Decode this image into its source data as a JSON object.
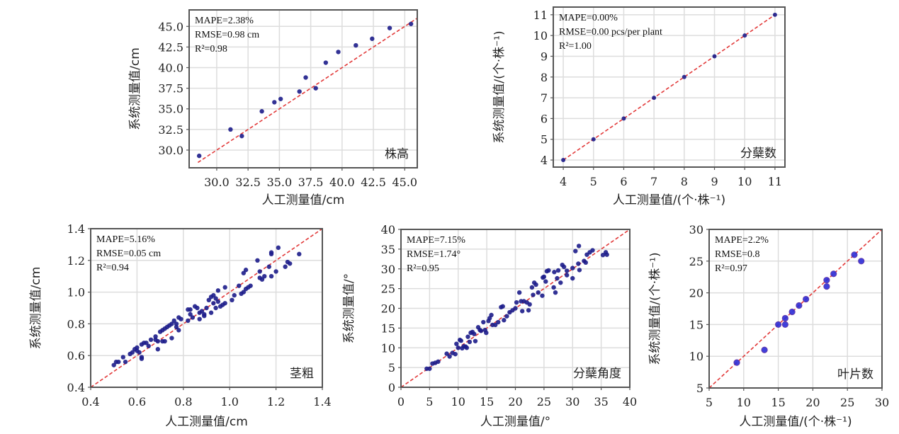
{
  "chart_data": [
    {
      "type": "scatter",
      "title": "株高",
      "xlabel": "人工测量值/cm",
      "ylabel": "系统测量值/cm",
      "xlim": [
        27.8,
        46.0
      ],
      "ylim": [
        27.85,
        47.0
      ],
      "xticks": [
        "30.0",
        "32.5",
        "35.0",
        "37.5",
        "40.0",
        "42.5",
        "45.0"
      ],
      "xtick_values": [
        30,
        32.5,
        35,
        37.5,
        40,
        42.5,
        45
      ],
      "yticks": [
        "30.0",
        "32.5",
        "35.0",
        "37.5",
        "40.0",
        "42.5",
        "45.0"
      ],
      "ytick_values": [
        30,
        32.5,
        35,
        37.5,
        40,
        42.5,
        45
      ],
      "grid": true,
      "stats": [
        "MAPE=2.38%",
        "RMSE=0.98 cm",
        "R²=0.98"
      ],
      "fit_line": [
        [
          28.5,
          28.5
        ],
        [
          46.2,
          46.2
        ]
      ],
      "points": [
        [
          28.6,
          29.3
        ],
        [
          31.1,
          32.5
        ],
        [
          32.0,
          31.7
        ],
        [
          33.6,
          34.7
        ],
        [
          34.6,
          35.8
        ],
        [
          35.1,
          36.2
        ],
        [
          36.6,
          37.1
        ],
        [
          37.1,
          38.8
        ],
        [
          37.9,
          37.5
        ],
        [
          38.7,
          40.6
        ],
        [
          39.7,
          41.9
        ],
        [
          41.1,
          42.7
        ],
        [
          42.4,
          43.5
        ],
        [
          43.8,
          44.8
        ],
        [
          45.5,
          45.3
        ]
      ]
    },
    {
      "type": "scatter",
      "title": "分蘖数",
      "xlabel": "人工测量值/(个·株⁻¹)",
      "ylabel": "系统测量值/(个·株⁻¹)",
      "xlim": [
        3.67,
        11.33
      ],
      "ylim": [
        3.66,
        11.37
      ],
      "xticks": [
        "4",
        "5",
        "6",
        "7",
        "8",
        "9",
        "10",
        "11"
      ],
      "xtick_values": [
        4,
        5,
        6,
        7,
        8,
        9,
        10,
        11
      ],
      "yticks": [
        "4",
        "5",
        "6",
        "7",
        "8",
        "9",
        "10",
        "11"
      ],
      "ytick_values": [
        4,
        5,
        6,
        7,
        8,
        9,
        10,
        11
      ],
      "grid": true,
      "stats": [
        "MAPE=0.00%",
        "RMSE=0.00 pcs/per plant",
        "R²=1.00"
      ],
      "fit_line": [
        [
          4,
          4
        ],
        [
          11,
          11
        ]
      ],
      "points": [
        [
          4,
          4
        ],
        [
          5,
          5
        ],
        [
          6,
          6
        ],
        [
          7,
          7
        ],
        [
          8,
          8
        ],
        [
          9,
          9
        ],
        [
          10,
          10
        ],
        [
          11,
          11
        ]
      ]
    },
    {
      "type": "scatter",
      "title": "茎粗",
      "xlabel": "人工测量值/cm",
      "ylabel": "系统测量值/cm",
      "xlim": [
        0.4,
        1.4
      ],
      "ylim": [
        0.4,
        1.4
      ],
      "xticks": [
        "0.4",
        "0.6",
        "0.8",
        "1.0",
        "1.2",
        "1.4"
      ],
      "xtick_values": [
        0.4,
        0.6,
        0.8,
        1.0,
        1.2,
        1.4
      ],
      "yticks": [
        "0.4",
        "0.6",
        "0.8",
        "1.0",
        "1.2",
        "1.4"
      ],
      "ytick_values": [
        0.4,
        0.6,
        0.8,
        1.0,
        1.2,
        1.4
      ],
      "grid": true,
      "stats": [
        "MAPE=5.16%",
        "RMSE=0.05 cm",
        "R²=0.94"
      ],
      "fit_line": [
        [
          0.4,
          0.4
        ],
        [
          1.4,
          1.4
        ]
      ],
      "points": [
        [
          0.5,
          0.54
        ],
        [
          0.51,
          0.56
        ],
        [
          0.52,
          0.56
        ],
        [
          0.54,
          0.59
        ],
        [
          0.55,
          0.56
        ],
        [
          0.57,
          0.61
        ],
        [
          0.58,
          0.62
        ],
        [
          0.59,
          0.64
        ],
        [
          0.6,
          0.65
        ],
        [
          0.6,
          0.63
        ],
        [
          0.61,
          0.62
        ],
        [
          0.62,
          0.58
        ],
        [
          0.62,
          0.59
        ],
        [
          0.62,
          0.67
        ],
        [
          0.63,
          0.68
        ],
        [
          0.64,
          0.68
        ],
        [
          0.65,
          0.66
        ],
        [
          0.66,
          0.7
        ],
        [
          0.68,
          0.72
        ],
        [
          0.68,
          0.7
        ],
        [
          0.69,
          0.64
        ],
        [
          0.69,
          0.69
        ],
        [
          0.7,
          0.75
        ],
        [
          0.71,
          0.76
        ],
        [
          0.71,
          0.69
        ],
        [
          0.72,
          0.77
        ],
        [
          0.72,
          0.69
        ],
        [
          0.73,
          0.78
        ],
        [
          0.74,
          0.79
        ],
        [
          0.75,
          0.8
        ],
        [
          0.75,
          0.71
        ],
        [
          0.76,
          0.82
        ],
        [
          0.77,
          0.78
        ],
        [
          0.77,
          0.8
        ],
        [
          0.78,
          0.76
        ],
        [
          0.78,
          0.84
        ],
        [
          0.79,
          0.83
        ],
        [
          0.82,
          0.89
        ],
        [
          0.82,
          0.82
        ],
        [
          0.83,
          0.89
        ],
        [
          0.83,
          0.86
        ],
        [
          0.84,
          0.84
        ],
        [
          0.85,
          0.91
        ],
        [
          0.86,
          0.9
        ],
        [
          0.87,
          0.83
        ],
        [
          0.87,
          0.87
        ],
        [
          0.88,
          0.88
        ],
        [
          0.89,
          0.86
        ],
        [
          0.89,
          0.85
        ],
        [
          0.9,
          0.9
        ],
        [
          0.91,
          0.95
        ],
        [
          0.92,
          0.97
        ],
        [
          0.92,
          0.87
        ],
        [
          0.93,
          0.98
        ],
        [
          0.93,
          0.93
        ],
        [
          0.94,
          0.96
        ],
        [
          0.94,
          0.9
        ],
        [
          0.95,
          1.01
        ],
        [
          0.95,
          0.94
        ],
        [
          0.96,
          0.91
        ],
        [
          0.97,
          0.92
        ],
        [
          0.98,
          0.93
        ],
        [
          0.98,
          1.03
        ],
        [
          1.01,
          0.95
        ],
        [
          1.02,
          0.98
        ],
        [
          1.04,
          1.04
        ],
        [
          1.05,
          0.99
        ],
        [
          1.06,
          1.0
        ],
        [
          1.06,
          1.12
        ],
        [
          1.07,
          1.14
        ],
        [
          1.07,
          1.02
        ],
        [
          1.08,
          1.03
        ],
        [
          1.09,
          1.04
        ],
        [
          1.12,
          1.2
        ],
        [
          1.13,
          1.13
        ],
        [
          1.13,
          1.09
        ],
        [
          1.14,
          1.08
        ],
        [
          1.15,
          1.1
        ],
        [
          1.17,
          1.16
        ],
        [
          1.18,
          1.25
        ],
        [
          1.18,
          1.24
        ],
        [
          1.18,
          1.1
        ],
        [
          1.2,
          1.13
        ],
        [
          1.21,
          1.28
        ],
        [
          1.24,
          1.16
        ],
        [
          1.25,
          1.19
        ],
        [
          1.26,
          1.18
        ],
        [
          1.3,
          1.24
        ]
      ]
    },
    {
      "type": "scatter",
      "title": "分蘖角度",
      "xlabel": "人工测量值/°",
      "ylabel": "系统测量值/°",
      "xlim": [
        0,
        40
      ],
      "ylim": [
        0,
        40
      ],
      "xticks": [
        "0",
        "5",
        "10",
        "15",
        "20",
        "25",
        "30",
        "35",
        "40"
      ],
      "xtick_values": [
        0,
        5,
        10,
        15,
        20,
        25,
        30,
        35,
        40
      ],
      "yticks": [
        "0",
        "5",
        "10",
        "15",
        "20",
        "25",
        "30",
        "35",
        "40"
      ],
      "ytick_values": [
        0,
        5,
        10,
        15,
        20,
        25,
        30,
        35,
        40
      ],
      "grid": true,
      "stats": [
        "MAPE=7.15%",
        "RMSE=1.74°",
        "R²=0.95"
      ],
      "fit_line": [
        [
          0,
          0
        ],
        [
          40,
          40
        ]
      ],
      "points": [
        [
          4.5,
          4.7
        ],
        [
          5,
          4.7
        ],
        [
          5.5,
          6
        ],
        [
          6,
          6.2
        ],
        [
          6.5,
          6.5
        ],
        [
          8,
          8.5
        ],
        [
          8.5,
          7.8
        ],
        [
          9,
          8.7
        ],
        [
          9.5,
          8.4
        ],
        [
          9.7,
          11
        ],
        [
          10,
          10
        ],
        [
          10.3,
          12
        ],
        [
          10.5,
          11.8
        ],
        [
          10.7,
          9.9
        ],
        [
          11,
          10.4
        ],
        [
          11.3,
          10.3
        ],
        [
          11.5,
          10
        ],
        [
          11.7,
          12.8
        ],
        [
          12,
          11.5
        ],
        [
          12.2,
          13.8
        ],
        [
          12.5,
          14
        ],
        [
          12.8,
          13.5
        ],
        [
          13,
          11.7
        ],
        [
          13.5,
          15.2
        ],
        [
          13.8,
          14.5
        ],
        [
          14,
          14.3
        ],
        [
          14.4,
          16.5
        ],
        [
          14.7,
          14.5
        ],
        [
          14.9,
          13.8
        ],
        [
          15.3,
          16.8
        ],
        [
          15.5,
          17.5
        ],
        [
          15.8,
          18.3
        ],
        [
          16,
          15.8
        ],
        [
          16.5,
          15.8
        ],
        [
          17,
          16.5
        ],
        [
          17.5,
          20.3
        ],
        [
          17.8,
          20.5
        ],
        [
          18,
          17
        ],
        [
          18.5,
          18
        ],
        [
          19,
          19
        ],
        [
          19.5,
          19.5
        ],
        [
          20,
          20
        ],
        [
          20.2,
          21.5
        ],
        [
          20.7,
          24
        ],
        [
          21,
          21.8
        ],
        [
          21.2,
          19.3
        ],
        [
          21.5,
          21.8
        ],
        [
          22,
          21.5
        ],
        [
          22.3,
          19.5
        ],
        [
          22.5,
          21
        ],
        [
          22.9,
          25.3
        ],
        [
          23.1,
          23.4
        ],
        [
          23.3,
          26.5
        ],
        [
          23.6,
          26
        ],
        [
          24,
          24
        ],
        [
          24.7,
          23.2
        ],
        [
          24.8,
          27.8
        ],
        [
          25,
          28
        ],
        [
          25.3,
          26.8
        ],
        [
          25.5,
          29.4
        ],
        [
          25.8,
          29.6
        ],
        [
          26.7,
          25.3
        ],
        [
          26.8,
          29.2
        ],
        [
          27,
          24
        ],
        [
          27.3,
          27.6
        ],
        [
          27.5,
          29.6
        ],
        [
          27.9,
          26.5
        ],
        [
          28.2,
          31
        ],
        [
          28.5,
          30.5
        ],
        [
          29,
          29.5
        ],
        [
          29,
          28.4
        ],
        [
          30,
          30.2
        ],
        [
          30,
          27.6
        ],
        [
          30.5,
          34.5
        ],
        [
          31,
          31.3
        ],
        [
          31.1,
          35.8
        ],
        [
          31.2,
          29.7
        ],
        [
          32,
          32
        ],
        [
          32.3,
          31.6
        ],
        [
          32.5,
          33.6
        ],
        [
          33,
          34.2
        ],
        [
          33.5,
          34.7
        ],
        [
          35.3,
          33.5
        ],
        [
          35.8,
          34.2
        ],
        [
          36,
          33.6
        ]
      ]
    },
    {
      "type": "scatter",
      "title": "叶片数",
      "xlabel": "人工测量值/(个·株⁻¹)",
      "ylabel": "系统测量值/(个·株⁻¹)",
      "xlim": [
        5,
        30
      ],
      "ylim": [
        5,
        30
      ],
      "xticks": [
        "5",
        "10",
        "15",
        "20",
        "25",
        "30"
      ],
      "xtick_values": [
        5,
        10,
        15,
        20,
        25,
        30
      ],
      "yticks": [
        "5",
        "10",
        "15",
        "20",
        "25",
        "30"
      ],
      "ytick_values": [
        5,
        10,
        15,
        20,
        25,
        30
      ],
      "grid": true,
      "stats": [
        "MAPE=2.2%",
        "RMSE=0.8",
        "R²=0.97"
      ],
      "fit_line": [
        [
          5,
          5
        ],
        [
          30,
          30
        ]
      ],
      "points": [
        [
          9,
          9
        ],
        [
          13,
          11
        ],
        [
          15,
          15
        ],
        [
          16,
          16
        ],
        [
          16,
          15
        ],
        [
          17,
          17
        ],
        [
          18,
          18
        ],
        [
          19,
          19
        ],
        [
          22,
          22
        ],
        [
          22,
          21
        ],
        [
          23,
          23
        ],
        [
          26,
          26
        ],
        [
          27,
          25
        ]
      ]
    }
  ],
  "colors": {
    "point": "#1c1c8a",
    "fit_line": "#e23a3a",
    "grid": "#dddddd",
    "frame": "#555555"
  }
}
